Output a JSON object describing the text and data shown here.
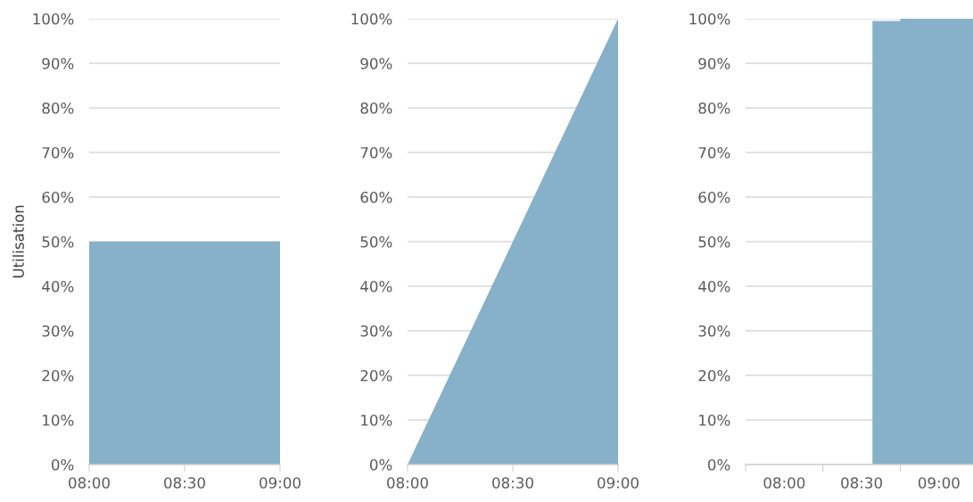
{
  "chart_data": [
    {
      "type": "area",
      "ylabel": "Utilisation",
      "x": [
        8,
        9
      ],
      "series": [
        {
          "color": "#87b0c9",
          "values": [
            50,
            50
          ]
        }
      ],
      "xlim": [
        8,
        9
      ],
      "xticks": [
        {
          "value": 8,
          "label": "08:00"
        },
        {
          "value": 8.5,
          "label": "08:30"
        },
        {
          "value": 9,
          "label": "09:00"
        }
      ],
      "ylim": [
        0,
        100
      ],
      "yticks": [
        {
          "value": 0,
          "label": "0%"
        },
        {
          "value": 10,
          "label": "10%"
        },
        {
          "value": 20,
          "label": "20%"
        },
        {
          "value": 30,
          "label": "30%"
        },
        {
          "value": 40,
          "label": "40%"
        },
        {
          "value": 50,
          "label": "50%"
        },
        {
          "value": 60,
          "label": "60%"
        },
        {
          "value": 70,
          "label": "70%"
        },
        {
          "value": 80,
          "label": "80%"
        },
        {
          "value": 90,
          "label": "90%"
        },
        {
          "value": 100,
          "label": "100%"
        }
      ],
      "grid": "y"
    },
    {
      "type": "area",
      "x": [
        8,
        9
      ],
      "series": [
        {
          "color": "#87b0c9",
          "values": [
            0,
            100
          ]
        }
      ],
      "xlim": [
        8,
        9
      ],
      "xticks": [
        {
          "value": 8,
          "label": "08:00"
        },
        {
          "value": 8.5,
          "label": "08:30"
        },
        {
          "value": 9,
          "label": "09:00"
        }
      ],
      "ylim": [
        0,
        100
      ],
      "yticks": [
        {
          "value": 0,
          "label": "0%"
        },
        {
          "value": 10,
          "label": "10%"
        },
        {
          "value": 20,
          "label": "20%"
        },
        {
          "value": 30,
          "label": "30%"
        },
        {
          "value": 40,
          "label": "40%"
        },
        {
          "value": 50,
          "label": "50%"
        },
        {
          "value": 60,
          "label": "60%"
        },
        {
          "value": 70,
          "label": "70%"
        },
        {
          "value": 80,
          "label": "80%"
        },
        {
          "value": 90,
          "label": "90%"
        },
        {
          "value": 100,
          "label": "100%"
        }
      ],
      "grid": "y"
    },
    {
      "type": "area",
      "x": [
        8.57,
        8.57,
        8.75,
        8.75,
        9.22
      ],
      "series": [
        {
          "color": "#87b0c9",
          "values": [
            0,
            99.5,
            99.5,
            100,
            100
          ]
        }
      ],
      "xlim": [
        7.75,
        9.22
      ],
      "xticks": [
        {
          "value": 7.75,
          "label": null
        },
        {
          "value": 8,
          "label": "08:00"
        },
        {
          "value": 8.25,
          "label": null
        },
        {
          "value": 8.5,
          "label": "08:30"
        },
        {
          "value": 8.75,
          "label": null
        },
        {
          "value": 9,
          "label": "09:00"
        }
      ],
      "ylim": [
        0,
        100
      ],
      "yticks": [
        {
          "value": 0,
          "label": "0%"
        },
        {
          "value": 10,
          "label": "10%"
        },
        {
          "value": 20,
          "label": "20%"
        },
        {
          "value": 30,
          "label": "30%"
        },
        {
          "value": 40,
          "label": "40%"
        },
        {
          "value": 50,
          "label": "50%"
        },
        {
          "value": 60,
          "label": "60%"
        },
        {
          "value": 70,
          "label": "70%"
        },
        {
          "value": 80,
          "label": "80%"
        },
        {
          "value": 90,
          "label": "90%"
        },
        {
          "value": 100,
          "label": "100%"
        }
      ],
      "grid": "y"
    }
  ]
}
